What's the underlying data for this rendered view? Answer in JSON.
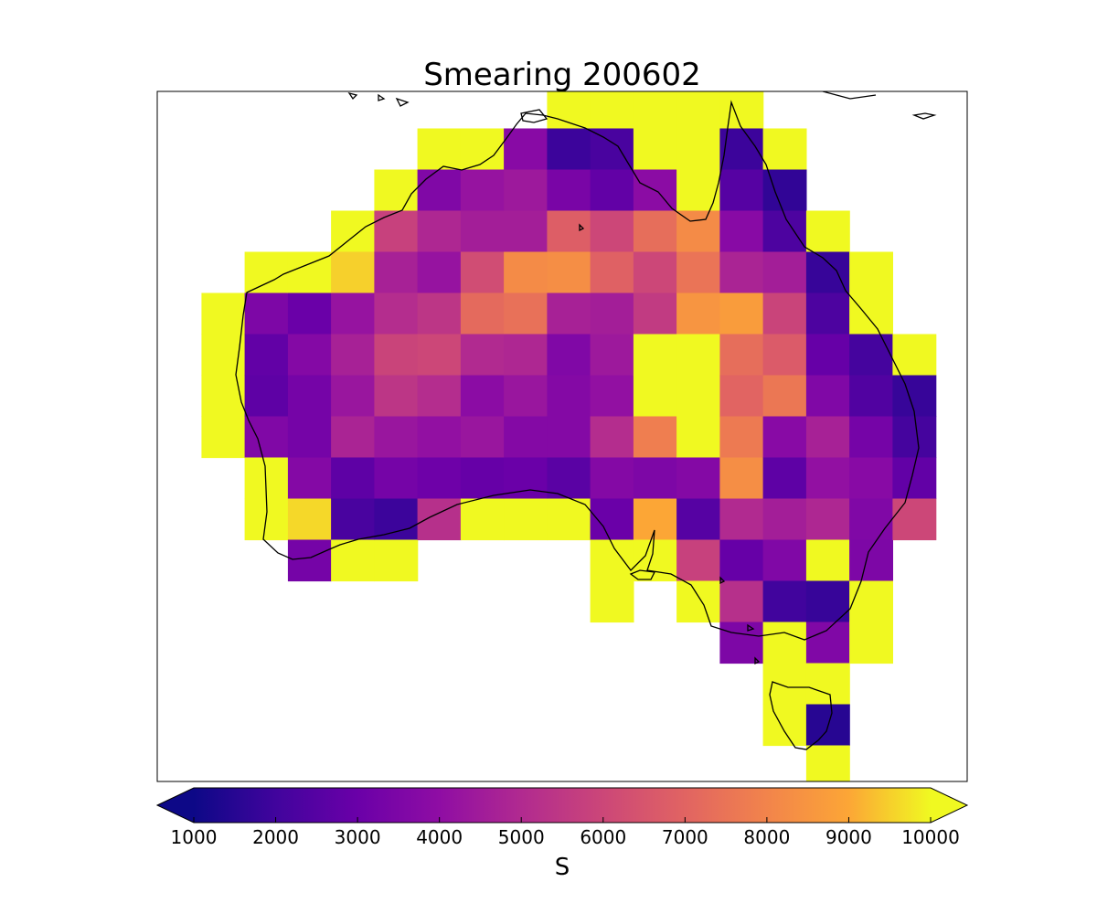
{
  "chart_data": {
    "type": "heatmap",
    "title": "Smearing 200602",
    "colormap": "plasma",
    "colorbar": {
      "label": "S",
      "vmin": 1000,
      "vmax": 10000,
      "ticks": [
        "1000",
        "2000",
        "3000",
        "4000",
        "5000",
        "6000",
        "7000",
        "8000",
        "9000",
        "10000"
      ],
      "extend": "both",
      "orientation": "horizontal",
      "placement": "bottom"
    },
    "projection": "lat-lon grid over Australia",
    "grid_resolution_deg": 2.5,
    "lon_range": [
      110,
      157
    ],
    "lat_range": [
      -45,
      -9
    ],
    "cells": [
      {
        "lon": 112,
        "lat": -22,
        "v": 10000
      },
      {
        "lon": 112,
        "lat": -24.5,
        "v": 10000
      },
      {
        "lon": 112,
        "lat": -27,
        "v": 10000
      },
      {
        "lon": 112,
        "lat": -29.5,
        "v": 10000
      },
      {
        "lon": 114.5,
        "lat": -19.5,
        "v": 10000
      },
      {
        "lon": 114.5,
        "lat": -22,
        "v": 3500
      },
      {
        "lon": 114.5,
        "lat": -24.5,
        "v": 2800
      },
      {
        "lon": 114.5,
        "lat": -27,
        "v": 2700
      },
      {
        "lon": 114.5,
        "lat": -29.5,
        "v": 3600
      },
      {
        "lon": 114.5,
        "lat": -32,
        "v": 10000
      },
      {
        "lon": 114.5,
        "lat": -34.5,
        "v": 10000
      },
      {
        "lon": 117,
        "lat": -19.5,
        "v": 10000
      },
      {
        "lon": 117,
        "lat": -22,
        "v": 3000
      },
      {
        "lon": 117,
        "lat": -24.5,
        "v": 3700
      },
      {
        "lon": 117,
        "lat": -27,
        "v": 3300
      },
      {
        "lon": 117,
        "lat": -29.5,
        "v": 3300
      },
      {
        "lon": 117,
        "lat": -32,
        "v": 3700
      },
      {
        "lon": 117,
        "lat": -34.5,
        "v": 9600
      },
      {
        "lon": 117,
        "lat": -37,
        "v": 3300
      },
      {
        "lon": 119.5,
        "lat": -17,
        "v": 10000
      },
      {
        "lon": 119.5,
        "lat": -19.5,
        "v": 9500
      },
      {
        "lon": 119.5,
        "lat": -22,
        "v": 4200
      },
      {
        "lon": 119.5,
        "lat": -24.5,
        "v": 4700
      },
      {
        "lon": 119.5,
        "lat": -27,
        "v": 4300
      },
      {
        "lon": 119.5,
        "lat": -29.5,
        "v": 4800
      },
      {
        "lon": 119.5,
        "lat": -32,
        "v": 2700
      },
      {
        "lon": 119.5,
        "lat": -34.5,
        "v": 2200
      },
      {
        "lon": 119.5,
        "lat": -37,
        "v": 10000
      },
      {
        "lon": 122,
        "lat": -14.5,
        "v": 10000
      },
      {
        "lon": 122,
        "lat": -17,
        "v": 5800
      },
      {
        "lon": 122,
        "lat": -19.5,
        "v": 4700
      },
      {
        "lon": 122,
        "lat": -22,
        "v": 5100
      },
      {
        "lon": 122,
        "lat": -24.5,
        "v": 5900
      },
      {
        "lon": 122,
        "lat": -27,
        "v": 5400
      },
      {
        "lon": 122,
        "lat": -29.5,
        "v": 4300
      },
      {
        "lon": 122,
        "lat": -32,
        "v": 3300
      },
      {
        "lon": 122,
        "lat": -34.5,
        "v": 1900
      },
      {
        "lon": 122,
        "lat": -37,
        "v": 10000
      },
      {
        "lon": 124.5,
        "lat": -12,
        "v": 10000
      },
      {
        "lon": 124.5,
        "lat": -14.5,
        "v": 3600
      },
      {
        "lon": 124.5,
        "lat": -17,
        "v": 4900
      },
      {
        "lon": 124.5,
        "lat": -19.5,
        "v": 4200
      },
      {
        "lon": 124.5,
        "lat": -22,
        "v": 5400
      },
      {
        "lon": 124.5,
        "lat": -24.5,
        "v": 6000
      },
      {
        "lon": 124.5,
        "lat": -27,
        "v": 5100
      },
      {
        "lon": 124.5,
        "lat": -29.5,
        "v": 4100
      },
      {
        "lon": 124.5,
        "lat": -32,
        "v": 3100
      },
      {
        "lon": 124.5,
        "lat": -34.5,
        "v": 5200
      },
      {
        "lon": 127,
        "lat": -12,
        "v": 10000
      },
      {
        "lon": 127,
        "lat": -14.5,
        "v": 4200
      },
      {
        "lon": 127,
        "lat": -17,
        "v": 4600
      },
      {
        "lon": 127,
        "lat": -19.5,
        "v": 6200
      },
      {
        "lon": 127,
        "lat": -22,
        "v": 7200
      },
      {
        "lon": 127,
        "lat": -24.5,
        "v": 5000
      },
      {
        "lon": 127,
        "lat": -27,
        "v": 3900
      },
      {
        "lon": 127,
        "lat": -29.5,
        "v": 4300
      },
      {
        "lon": 127,
        "lat": -32,
        "v": 2900
      },
      {
        "lon": 127,
        "lat": -34.5,
        "v": 10000
      },
      {
        "lon": 129.5,
        "lat": -12,
        "v": 3800
      },
      {
        "lon": 129.5,
        "lat": -14.5,
        "v": 4400
      },
      {
        "lon": 129.5,
        "lat": -17,
        "v": 4600
      },
      {
        "lon": 129.5,
        "lat": -19.5,
        "v": 8200
      },
      {
        "lon": 129.5,
        "lat": -22,
        "v": 7400
      },
      {
        "lon": 129.5,
        "lat": -24.5,
        "v": 4900
      },
      {
        "lon": 129.5,
        "lat": -27,
        "v": 4300
      },
      {
        "lon": 129.5,
        "lat": -29.5,
        "v": 3700
      },
      {
        "lon": 129.5,
        "lat": -32,
        "v": 3000
      },
      {
        "lon": 129.5,
        "lat": -34.5,
        "v": 10000
      },
      {
        "lon": 132,
        "lat": -9.5,
        "v": 10000
      },
      {
        "lon": 132,
        "lat": -12,
        "v": 1900
      },
      {
        "lon": 132,
        "lat": -14.5,
        "v": 3400
      },
      {
        "lon": 132,
        "lat": -17,
        "v": 6800
      },
      {
        "lon": 132,
        "lat": -19.5,
        "v": 8300
      },
      {
        "lon": 132,
        "lat": -22,
        "v": 4700
      },
      {
        "lon": 132,
        "lat": -24.5,
        "v": 3600
      },
      {
        "lon": 132,
        "lat": -27,
        "v": 3700
      },
      {
        "lon": 132,
        "lat": -29.5,
        "v": 3700
      },
      {
        "lon": 132,
        "lat": -32,
        "v": 2600
      },
      {
        "lon": 132,
        "lat": -34.5,
        "v": 10000
      },
      {
        "lon": 134.5,
        "lat": -9.5,
        "v": 10000
      },
      {
        "lon": 134.5,
        "lat": -12,
        "v": 2200
      },
      {
        "lon": 134.5,
        "lat": -14.5,
        "v": 2800
      },
      {
        "lon": 134.5,
        "lat": -17,
        "v": 6000
      },
      {
        "lon": 134.5,
        "lat": -19.5,
        "v": 6900
      },
      {
        "lon": 134.5,
        "lat": -22,
        "v": 4600
      },
      {
        "lon": 134.5,
        "lat": -24.5,
        "v": 4400
      },
      {
        "lon": 134.5,
        "lat": -27,
        "v": 4100
      },
      {
        "lon": 134.5,
        "lat": -29.5,
        "v": 5100
      },
      {
        "lon": 134.5,
        "lat": -32,
        "v": 3700
      },
      {
        "lon": 134.5,
        "lat": -34.5,
        "v": 3000
      },
      {
        "lon": 134.5,
        "lat": -37,
        "v": 10000
      },
      {
        "lon": 134.5,
        "lat": -39.5,
        "v": 10000
      },
      {
        "lon": 137,
        "lat": -9.5,
        "v": 10000
      },
      {
        "lon": 137,
        "lat": -12,
        "v": 10000
      },
      {
        "lon": 137,
        "lat": -14.5,
        "v": 3900
      },
      {
        "lon": 137,
        "lat": -17,
        "v": 7300
      },
      {
        "lon": 137,
        "lat": -19.5,
        "v": 6000
      },
      {
        "lon": 137,
        "lat": -22,
        "v": 5600
      },
      {
        "lon": 137,
        "lat": -24.5,
        "v": 10000
      },
      {
        "lon": 137,
        "lat": -27,
        "v": 10000
      },
      {
        "lon": 137,
        "lat": -29.5,
        "v": 7800
      },
      {
        "lon": 137,
        "lat": -32,
        "v": 3500
      },
      {
        "lon": 137,
        "lat": -34.5,
        "v": 9000
      },
      {
        "lon": 137,
        "lat": -37,
        "v": 10000
      },
      {
        "lon": 139.5,
        "lat": -9.5,
        "v": 10000
      },
      {
        "lon": 139.5,
        "lat": -12,
        "v": 10000
      },
      {
        "lon": 139.5,
        "lat": -14.5,
        "v": 10000
      },
      {
        "lon": 139.5,
        "lat": -17,
        "v": 8200
      },
      {
        "lon": 139.5,
        "lat": -19.5,
        "v": 7500
      },
      {
        "lon": 139.5,
        "lat": -22,
        "v": 8500
      },
      {
        "lon": 139.5,
        "lat": -24.5,
        "v": 10000
      },
      {
        "lon": 139.5,
        "lat": -27,
        "v": 10000
      },
      {
        "lon": 139.5,
        "lat": -29.5,
        "v": 10000
      },
      {
        "lon": 139.5,
        "lat": -32,
        "v": 3700
      },
      {
        "lon": 139.5,
        "lat": -34.5,
        "v": 2500
      },
      {
        "lon": 139.5,
        "lat": -37,
        "v": 5800
      },
      {
        "lon": 139.5,
        "lat": -39.5,
        "v": 10000
      },
      {
        "lon": 142,
        "lat": -9.5,
        "v": 10000
      },
      {
        "lon": 142,
        "lat": -12,
        "v": 1900
      },
      {
        "lon": 142,
        "lat": -14.5,
        "v": 2500
      },
      {
        "lon": 142,
        "lat": -17,
        "v": 3800
      },
      {
        "lon": 142,
        "lat": -19.5,
        "v": 4800
      },
      {
        "lon": 142,
        "lat": -22,
        "v": 8700
      },
      {
        "lon": 142,
        "lat": -24.5,
        "v": 7300
      },
      {
        "lon": 142,
        "lat": -27,
        "v": 7000
      },
      {
        "lon": 142,
        "lat": -29.5,
        "v": 7700
      },
      {
        "lon": 142,
        "lat": -32,
        "v": 8300
      },
      {
        "lon": 142,
        "lat": -34.5,
        "v": 5000
      },
      {
        "lon": 142,
        "lat": -37,
        "v": 2900
      },
      {
        "lon": 142,
        "lat": -39.5,
        "v": 5200
      },
      {
        "lon": 142,
        "lat": -42,
        "v": 3500
      },
      {
        "lon": 144.5,
        "lat": -12,
        "v": 10000
      },
      {
        "lon": 144.5,
        "lat": -14.5,
        "v": 1700
      },
      {
        "lon": 144.5,
        "lat": -17,
        "v": 2300
      },
      {
        "lon": 144.5,
        "lat": -19.5,
        "v": 4600
      },
      {
        "lon": 144.5,
        "lat": -22,
        "v": 5900
      },
      {
        "lon": 144.5,
        "lat": -24.5,
        "v": 6700
      },
      {
        "lon": 144.5,
        "lat": -27,
        "v": 7600
      },
      {
        "lon": 144.5,
        "lat": -29.5,
        "v": 3800
      },
      {
        "lon": 144.5,
        "lat": -32,
        "v": 2700
      },
      {
        "lon": 144.5,
        "lat": -34.5,
        "v": 4600
      },
      {
        "lon": 144.5,
        "lat": -37,
        "v": 3600
      },
      {
        "lon": 144.5,
        "lat": -39.5,
        "v": 2000
      },
      {
        "lon": 144.5,
        "lat": -42,
        "v": 10000
      },
      {
        "lon": 144.5,
        "lat": -44.5,
        "v": 10000
      },
      {
        "lon": 144.5,
        "lat": -47,
        "v": 10000
      },
      {
        "lon": 147,
        "lat": -17,
        "v": 10000
      },
      {
        "lon": 147,
        "lat": -19.5,
        "v": 1800
      },
      {
        "lon": 147,
        "lat": -22,
        "v": 2300
      },
      {
        "lon": 147,
        "lat": -24.5,
        "v": 2900
      },
      {
        "lon": 147,
        "lat": -27,
        "v": 3600
      },
      {
        "lon": 147,
        "lat": -29.5,
        "v": 4700
      },
      {
        "lon": 147,
        "lat": -32,
        "v": 4100
      },
      {
        "lon": 147,
        "lat": -34.5,
        "v": 4900
      },
      {
        "lon": 147,
        "lat": -37,
        "v": 10000
      },
      {
        "lon": 147,
        "lat": -39.5,
        "v": 1800
      },
      {
        "lon": 147,
        "lat": -42,
        "v": 3600
      },
      {
        "lon": 147,
        "lat": -44.5,
        "v": 10000
      },
      {
        "lon": 147,
        "lat": -47,
        "v": 1500
      },
      {
        "lon": 147,
        "lat": -49.5,
        "v": 10000
      },
      {
        "lon": 149.5,
        "lat": -19.5,
        "v": 10000
      },
      {
        "lon": 149.5,
        "lat": -22,
        "v": 10000
      },
      {
        "lon": 149.5,
        "lat": -24.5,
        "v": 2100
      },
      {
        "lon": 149.5,
        "lat": -27,
        "v": 2400
      },
      {
        "lon": 149.5,
        "lat": -29.5,
        "v": 3300
      },
      {
        "lon": 149.5,
        "lat": -32,
        "v": 3800
      },
      {
        "lon": 149.5,
        "lat": -34.5,
        "v": 3600
      },
      {
        "lon": 149.5,
        "lat": -37,
        "v": 3500
      },
      {
        "lon": 149.5,
        "lat": -39.5,
        "v": 10000
      },
      {
        "lon": 149.5,
        "lat": -42,
        "v": 10000
      },
      {
        "lon": 152,
        "lat": -24.5,
        "v": 10000
      },
      {
        "lon": 152,
        "lat": -27,
        "v": 1800
      },
      {
        "lon": 152,
        "lat": -29.5,
        "v": 2100
      },
      {
        "lon": 152,
        "lat": -32,
        "v": 2800
      },
      {
        "lon": 152,
        "lat": -34.5,
        "v": 6000
      }
    ]
  }
}
